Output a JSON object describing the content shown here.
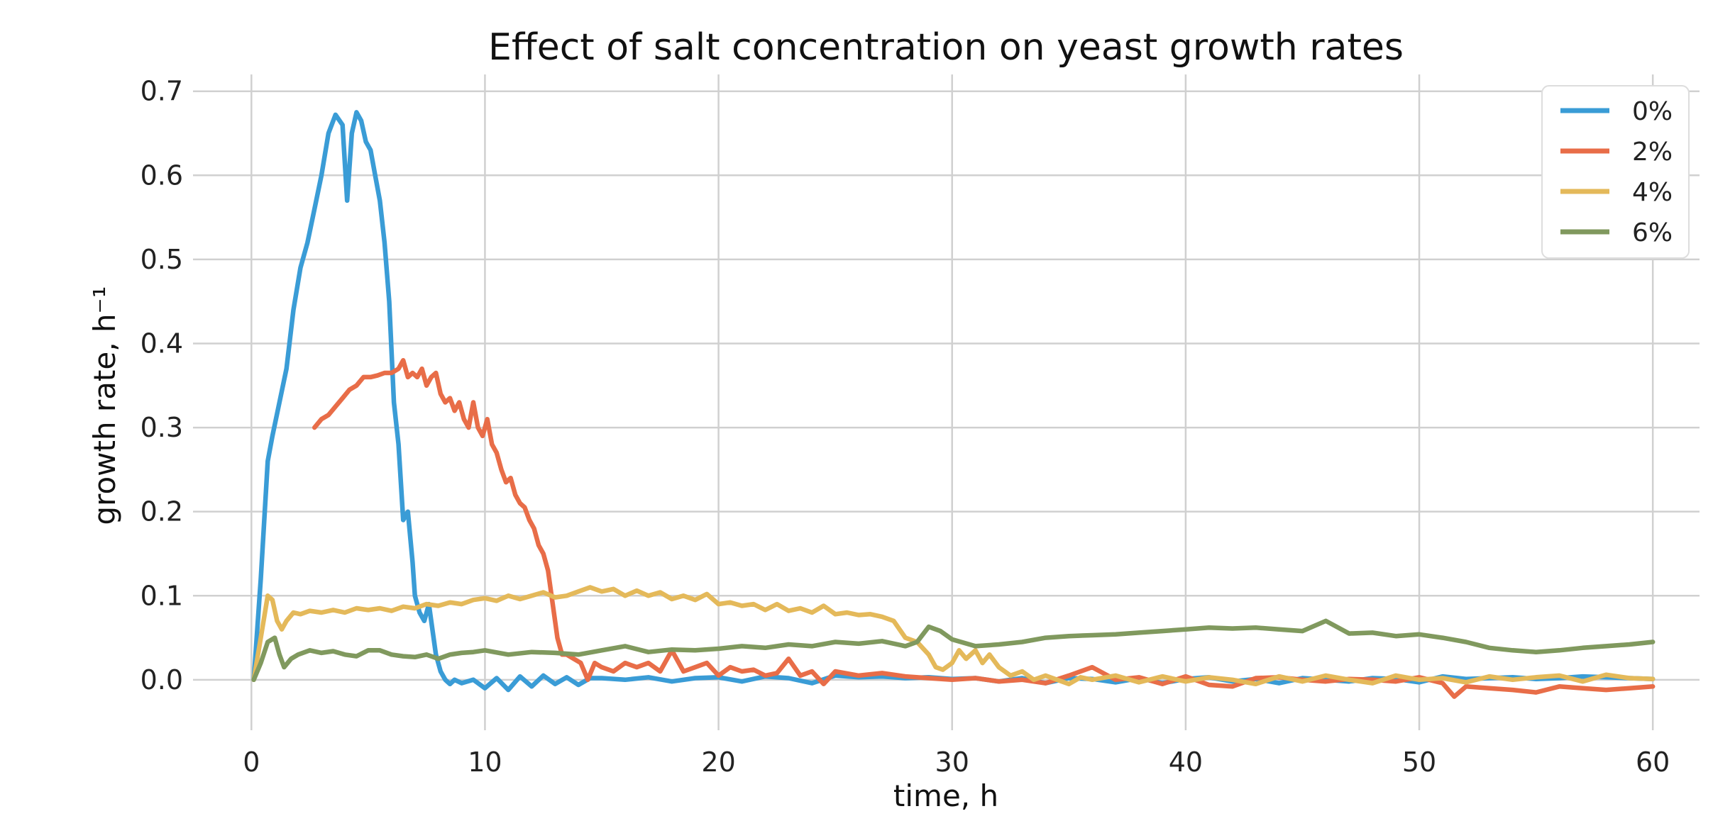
{
  "chart_data": {
    "type": "line",
    "title": "Effect of salt concentration on yeast growth rates",
    "xlabel": "time, h",
    "ylabel": "growth rate, h⁻¹",
    "xlim": [
      -2.5,
      62
    ],
    "ylim": [
      -0.06,
      0.72
    ],
    "xticks": [
      0,
      10,
      20,
      30,
      40,
      50,
      60
    ],
    "yticks": [
      0.0,
      0.1,
      0.2,
      0.3,
      0.4,
      0.5,
      0.6,
      0.7
    ],
    "grid": true,
    "legend_position": "top-right",
    "series": [
      {
        "name": "0%",
        "color": "#3a9cd6",
        "x": [
          0.1,
          0.4,
          0.7,
          0.9,
          1.2,
          1.5,
          1.8,
          2.1,
          2.4,
          2.7,
          3.0,
          3.3,
          3.6,
          3.9,
          4.1,
          4.3,
          4.5,
          4.7,
          4.9,
          5.1,
          5.3,
          5.5,
          5.7,
          5.9,
          6.1,
          6.3,
          6.5,
          6.7,
          6.9,
          7.0,
          7.2,
          7.4,
          7.6,
          7.8,
          7.9,
          8.1,
          8.3,
          8.5,
          8.7,
          9,
          9.5,
          10,
          10.5,
          11,
          11.5,
          12,
          12.5,
          13,
          13.5,
          14,
          14.5,
          15,
          16,
          17,
          18,
          19,
          20,
          21,
          22,
          23,
          24,
          25,
          26,
          27,
          28,
          29,
          30,
          31,
          32,
          33,
          34,
          35,
          36,
          37,
          38,
          39,
          40,
          41,
          42,
          43,
          44,
          45,
          46,
          47,
          48,
          49,
          50,
          51,
          52,
          53,
          54,
          55,
          56,
          57,
          58,
          59,
          60
        ],
        "y": [
          0.0,
          0.12,
          0.26,
          0.29,
          0.33,
          0.37,
          0.44,
          0.49,
          0.52,
          0.56,
          0.6,
          0.65,
          0.672,
          0.66,
          0.57,
          0.65,
          0.675,
          0.665,
          0.64,
          0.63,
          0.6,
          0.57,
          0.52,
          0.45,
          0.33,
          0.28,
          0.19,
          0.2,
          0.14,
          0.1,
          0.08,
          0.07,
          0.09,
          0.05,
          0.03,
          0.01,
          0.0,
          -0.005,
          0.0,
          -0.004,
          0.0,
          -0.01,
          0.002,
          -0.012,
          0.004,
          -0.008,
          0.005,
          -0.005,
          0.003,
          -0.006,
          0.002,
          0.002,
          0.0,
          0.003,
          -0.002,
          0.002,
          0.003,
          -0.002,
          0.004,
          0.002,
          -0.004,
          0.005,
          0.003,
          0.004,
          0.002,
          0.003,
          0.001,
          0.002,
          -0.002,
          0.002,
          -0.004,
          0.002,
          0.001,
          -0.003,
          0.002,
          -0.004,
          0.001,
          0.003,
          -0.002,
          0.001,
          -0.004,
          0.002,
          0.0,
          -0.002,
          0.002,
          0.001,
          -0.003,
          0.004,
          0.001,
          0.002,
          0.003,
          0.001,
          0.002,
          0.004,
          0.003,
          0.002,
          0.001
        ]
      },
      {
        "name": "2%",
        "color": "#e86d48",
        "x": [
          2.7,
          3.0,
          3.3,
          3.6,
          3.9,
          4.2,
          4.5,
          4.8,
          5.1,
          5.4,
          5.7,
          6.0,
          6.3,
          6.5,
          6.7,
          6.9,
          7.1,
          7.3,
          7.5,
          7.7,
          7.9,
          8.1,
          8.3,
          8.5,
          8.7,
          8.9,
          9.1,
          9.3,
          9.5,
          9.7,
          9.9,
          10.1,
          10.3,
          10.5,
          10.7,
          10.9,
          11.1,
          11.3,
          11.5,
          11.7,
          11.9,
          12.1,
          12.3,
          12.5,
          12.7,
          12.9,
          13.1,
          13.3,
          13.5,
          13.8,
          14.1,
          14.4,
          14.7,
          15.0,
          15.5,
          16,
          16.5,
          17,
          17.5,
          18,
          18.5,
          19,
          19.5,
          20,
          20.5,
          21,
          21.5,
          22,
          22.5,
          23,
          23.5,
          24,
          24.5,
          25,
          26,
          27,
          28,
          29,
          30,
          31,
          32,
          33,
          34,
          35,
          36,
          37,
          38,
          39,
          40,
          41,
          42,
          43,
          44,
          45,
          46,
          47,
          48,
          49,
          50,
          51,
          51.5,
          52,
          53,
          54,
          55,
          56,
          57,
          58,
          59,
          60
        ],
        "y": [
          0.3,
          0.31,
          0.315,
          0.325,
          0.335,
          0.345,
          0.35,
          0.36,
          0.36,
          0.362,
          0.365,
          0.365,
          0.37,
          0.38,
          0.36,
          0.365,
          0.36,
          0.37,
          0.35,
          0.36,
          0.365,
          0.34,
          0.33,
          0.335,
          0.32,
          0.33,
          0.31,
          0.3,
          0.33,
          0.3,
          0.29,
          0.31,
          0.28,
          0.27,
          0.25,
          0.235,
          0.24,
          0.22,
          0.21,
          0.205,
          0.19,
          0.18,
          0.16,
          0.15,
          0.13,
          0.09,
          0.05,
          0.03,
          0.03,
          0.025,
          0.02,
          0.0,
          0.02,
          0.015,
          0.01,
          0.02,
          0.015,
          0.02,
          0.01,
          0.035,
          0.01,
          0.015,
          0.02,
          0.005,
          0.015,
          0.01,
          0.012,
          0.005,
          0.008,
          0.025,
          0.005,
          0.01,
          -0.005,
          0.01,
          0.005,
          0.008,
          0.004,
          0.002,
          0.0,
          0.002,
          -0.002,
          0.0,
          -0.004,
          0.005,
          0.015,
          0.0,
          0.003,
          -0.005,
          0.004,
          -0.006,
          -0.008,
          0.002,
          0.003,
          0.0,
          -0.002,
          0.001,
          0.0,
          -0.002,
          0.003,
          -0.004,
          -0.02,
          -0.008,
          -0.01,
          -0.012,
          -0.015,
          -0.008,
          -0.01,
          -0.012,
          -0.01,
          -0.008
        ]
      },
      {
        "name": "4%",
        "color": "#e4b95a",
        "x": [
          0.1,
          0.4,
          0.7,
          0.9,
          1.1,
          1.3,
          1.5,
          1.8,
          2.1,
          2.5,
          3,
          3.5,
          4,
          4.5,
          5,
          5.5,
          6,
          6.5,
          7,
          7.5,
          8,
          8.5,
          9,
          9.5,
          10,
          10.5,
          11,
          11.5,
          12,
          12.5,
          13,
          13.5,
          14,
          14.5,
          15,
          15.5,
          16,
          16.5,
          17,
          17.5,
          18,
          18.5,
          19,
          19.5,
          20,
          20.5,
          21,
          21.5,
          22,
          22.5,
          23,
          23.5,
          24,
          24.5,
          25,
          25.5,
          26,
          26.5,
          27,
          27.5,
          28,
          28.5,
          29,
          29.3,
          29.6,
          30,
          30.3,
          30.6,
          31,
          31.3,
          31.6,
          32,
          32.5,
          33,
          33.5,
          34,
          34.5,
          35,
          35.5,
          36,
          37,
          38,
          39,
          40,
          41,
          42,
          43,
          44,
          45,
          46,
          47,
          48,
          49,
          50,
          51,
          52,
          53,
          54,
          55,
          56,
          57,
          58,
          59,
          60
        ],
        "y": [
          0.0,
          0.05,
          0.1,
          0.095,
          0.07,
          0.06,
          0.07,
          0.08,
          0.078,
          0.082,
          0.08,
          0.083,
          0.08,
          0.085,
          0.083,
          0.085,
          0.082,
          0.087,
          0.085,
          0.09,
          0.088,
          0.092,
          0.09,
          0.095,
          0.097,
          0.094,
          0.1,
          0.096,
          0.1,
          0.104,
          0.098,
          0.1,
          0.105,
          0.11,
          0.105,
          0.108,
          0.1,
          0.106,
          0.1,
          0.104,
          0.096,
          0.1,
          0.095,
          0.102,
          0.09,
          0.092,
          0.088,
          0.09,
          0.083,
          0.09,
          0.082,
          0.085,
          0.08,
          0.088,
          0.078,
          0.08,
          0.077,
          0.078,
          0.075,
          0.07,
          0.05,
          0.045,
          0.03,
          0.015,
          0.012,
          0.02,
          0.035,
          0.025,
          0.035,
          0.02,
          0.03,
          0.015,
          0.005,
          0.01,
          0.0,
          0.005,
          0.0,
          -0.005,
          0.003,
          0.0,
          0.005,
          -0.003,
          0.004,
          -0.002,
          0.003,
          0.0,
          -0.005,
          0.004,
          -0.002,
          0.005,
          0.0,
          -0.004,
          0.005,
          0.0,
          0.002,
          -0.003,
          0.004,
          0.0,
          0.003,
          0.005,
          -0.002,
          0.006,
          0.002,
          0.001
        ]
      },
      {
        "name": "6%",
        "color": "#80995e",
        "x": [
          0.1,
          0.4,
          0.7,
          1.0,
          1.2,
          1.4,
          1.7,
          2.0,
          2.5,
          3,
          3.5,
          4,
          4.5,
          5,
          5.5,
          6,
          6.5,
          7,
          7.5,
          8,
          8.5,
          9,
          9.5,
          10,
          11,
          12,
          13,
          14,
          15,
          16,
          17,
          18,
          19,
          20,
          21,
          22,
          23,
          24,
          25,
          26,
          27,
          28,
          28.5,
          29,
          29.5,
          30,
          31,
          32,
          33,
          34,
          35,
          36,
          37,
          38,
          39,
          40,
          41,
          42,
          43,
          44,
          45,
          46,
          47,
          48,
          49,
          50,
          51,
          52,
          53,
          54,
          55,
          56,
          57,
          58,
          59,
          60
        ],
        "y": [
          0.0,
          0.02,
          0.045,
          0.05,
          0.03,
          0.015,
          0.025,
          0.03,
          0.035,
          0.032,
          0.034,
          0.03,
          0.028,
          0.035,
          0.035,
          0.03,
          0.028,
          0.027,
          0.03,
          0.025,
          0.03,
          0.032,
          0.033,
          0.035,
          0.03,
          0.033,
          0.032,
          0.03,
          0.035,
          0.04,
          0.033,
          0.036,
          0.035,
          0.037,
          0.04,
          0.038,
          0.042,
          0.04,
          0.045,
          0.043,
          0.046,
          0.04,
          0.045,
          0.063,
          0.058,
          0.048,
          0.04,
          0.042,
          0.045,
          0.05,
          0.052,
          0.053,
          0.054,
          0.056,
          0.058,
          0.06,
          0.062,
          0.061,
          0.062,
          0.06,
          0.058,
          0.07,
          0.055,
          0.056,
          0.052,
          0.054,
          0.05,
          0.045,
          0.038,
          0.035,
          0.033,
          0.035,
          0.038,
          0.04,
          0.042,
          0.045
        ]
      }
    ]
  }
}
